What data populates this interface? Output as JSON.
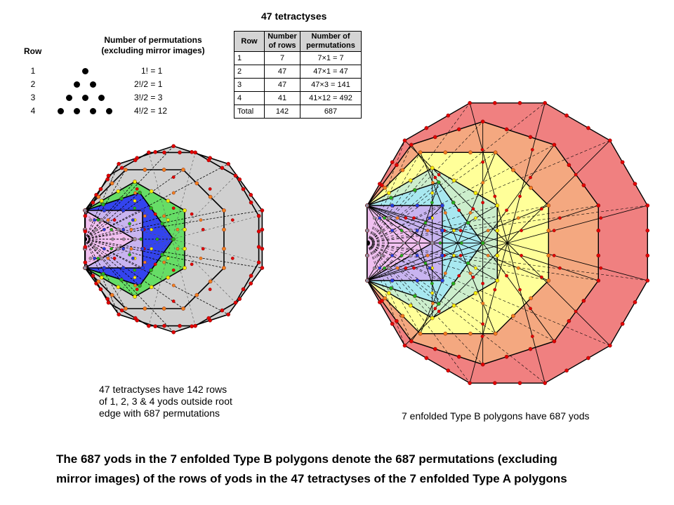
{
  "title": "47 tetractyses",
  "rows_header": "Row",
  "perm_header": [
    "Number of permutations",
    "(excluding mirror images)"
  ],
  "perm_rows": [
    {
      "row": "1",
      "dots": 1,
      "formula": "1! = 1"
    },
    {
      "row": "2",
      "dots": 2,
      "formula": "2!/2 = 1"
    },
    {
      "row": "3",
      "dots": 3,
      "formula": "3!/2 = 3"
    },
    {
      "row": "4",
      "dots": 4,
      "formula": "4!/2 = 12"
    }
  ],
  "table": {
    "headers": [
      "Row",
      "Number of rows",
      "Number of permutations"
    ],
    "rows": [
      [
        "1",
        "7",
        "7×1 = 7"
      ],
      [
        "2",
        "47",
        "47×1 = 47"
      ],
      [
        "3",
        "47",
        "47×3 = 141"
      ],
      [
        "4",
        "41",
        "41×12 = 492"
      ],
      [
        "Total",
        "142",
        "687"
      ]
    ]
  },
  "caption_left": [
    "47 tetractyses have 142 rows",
    "of 1, 2, 3 & 4 yods outside root",
    "edge with 687 permutations"
  ],
  "caption_right": "7 enfolded Type B polygons have 687 yods",
  "bottom_text": [
    "The 687 yods in the 7 enfolded Type B polygons denote the 687 permutations (excluding",
    "mirror images) of the rows of yods in the 47 tetractyses of the 7 enfolded Type A polygons"
  ],
  "colors": {
    "decagon": "#d0d0d0",
    "dodecagon": "#f08080",
    "decagon_b": "#f4a880",
    "octagon": "#ffff99",
    "hexagon": "#cceecc",
    "pentagon": "#a8e8f0",
    "square": "#c8b4f0",
    "triangle": "#f0c0f0",
    "blue_fill": "#3344ee",
    "green_fill": "#66dd66",
    "yod_red": "#e00000",
    "yod_orange": "#f08020",
    "yod_yellow": "#f0f000",
    "yod_green": "#20b020",
    "yod_blue": "#2040e0",
    "yod_grey": "#9090a0"
  }
}
